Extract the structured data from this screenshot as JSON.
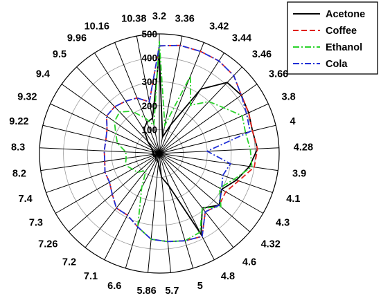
{
  "chart_data": {
    "type": "radar",
    "categories": [
      "3.2",
      "3.36",
      "3.42",
      "3.44",
      "3.46",
      "3.66",
      "3.8",
      "4",
      "4.28",
      "3.9",
      "4.1",
      "4.3",
      "4.32",
      "4.6",
      "4.8",
      "5",
      "5.7",
      "5.86",
      "6.6",
      "7.1",
      "7.2",
      "7.26",
      "7.3",
      "7.4",
      "8.2",
      "8.3",
      "9.22",
      "9.32",
      "9.4",
      "9.5",
      "9.96",
      "10.16",
      "10.38"
    ],
    "rticks": [
      0,
      100,
      200,
      300,
      400,
      500
    ],
    "rlim": [
      0,
      500
    ],
    "grid": true,
    "legend_position": "top-right",
    "series": [
      {
        "name": "Acetone",
        "color": "#000000",
        "dash": "solid",
        "values": [
          420,
          70,
          130,
          320,
          410,
          420,
          410,
          400,
          410,
          380,
          340,
          300,
          330,
          290,
          380,
          140,
          100,
          40,
          30,
          30,
          25,
          20,
          20,
          20,
          25,
          25,
          30,
          30,
          40,
          70,
          120,
          140,
          150
        ]
      },
      {
        "name": "Coffee",
        "color": "#e0201b",
        "dash": "dash",
        "values": [
          450,
          460,
          460,
          460,
          450,
          420,
          410,
          400,
          410,
          400,
          350,
          320,
          330,
          310,
          390,
          380,
          370,
          360,
          320,
          290,
          290,
          260,
          240,
          240,
          230,
          230,
          230,
          240,
          270,
          270,
          260,
          250,
          220
        ]
      },
      {
        "name": "Ethanol",
        "color": "#2ad22a",
        "dash": "dashdot",
        "values": [
          470,
          120,
          350,
          240,
          300,
          330,
          380,
          370,
          380,
          390,
          330,
          290,
          340,
          290,
          370,
          380,
          370,
          360,
          320,
          160,
          90,
          120,
          130,
          150,
          140,
          140,
          180,
          200,
          230,
          240,
          210,
          160,
          120
        ]
      },
      {
        "name": "Cola",
        "color": "#1f2fd6",
        "dash": "dashdot",
        "values": [
          450,
          460,
          460,
          460,
          450,
          420,
          400,
          390,
          200,
          300,
          280,
          300,
          330,
          310,
          390,
          380,
          370,
          360,
          320,
          290,
          290,
          260,
          240,
          240,
          230,
          230,
          230,
          240,
          270,
          270,
          260,
          250,
          220
        ]
      }
    ]
  }
}
